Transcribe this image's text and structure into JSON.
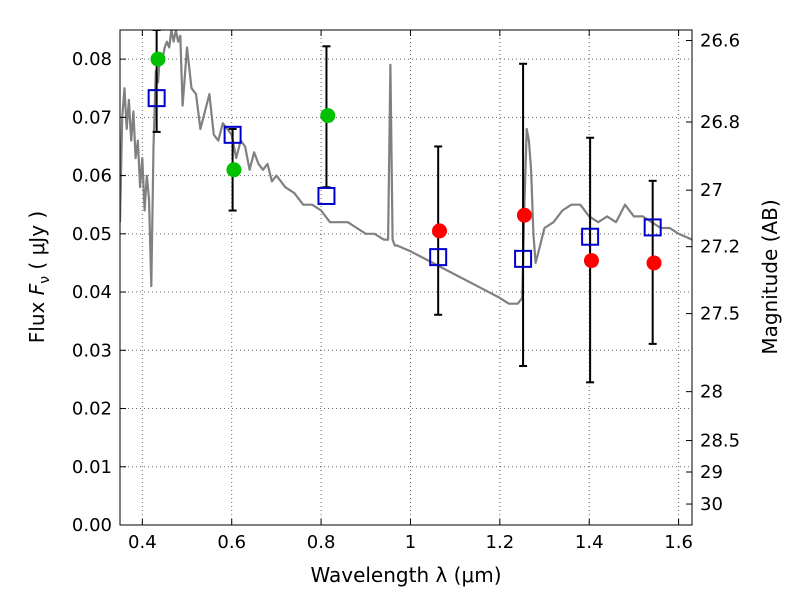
{
  "chart_data": {
    "type": "scatter",
    "xlabel": "Wavelength  λ (μm)",
    "ylabel": "Flux  F_ν  ( μJy )",
    "ylabel_parts": {
      "prefix": "Flux  ",
      "symbol": "F",
      "subscript": "ν",
      "suffix": "  ( μJy )"
    },
    "y2label": "Magnitude (AB)",
    "xlim": [
      0.35,
      1.63
    ],
    "ylim": [
      0.0,
      0.085
    ],
    "grid": true,
    "x_ticks": [
      {
        "value": 0.4,
        "label": "0.4"
      },
      {
        "value": 0.6,
        "label": "0.6"
      },
      {
        "value": 0.8,
        "label": "0.8"
      },
      {
        "value": 1.0,
        "label": "1"
      },
      {
        "value": 1.2,
        "label": "1.2"
      },
      {
        "value": 1.4,
        "label": "1.4"
      },
      {
        "value": 1.6,
        "label": "1.6"
      }
    ],
    "y_ticks": [
      {
        "value": 0.0,
        "label": "0.00"
      },
      {
        "value": 0.01,
        "label": "0.01"
      },
      {
        "value": 0.02,
        "label": "0.02"
      },
      {
        "value": 0.03,
        "label": "0.03"
      },
      {
        "value": 0.04,
        "label": "0.04"
      },
      {
        "value": 0.05,
        "label": "0.05"
      },
      {
        "value": 0.06,
        "label": "0.06"
      },
      {
        "value": 0.07,
        "label": "0.07"
      },
      {
        "value": 0.08,
        "label": "0.08"
      }
    ],
    "y2_ticks": [
      {
        "flux": 0.0832,
        "label": "26.6"
      },
      {
        "flux": 0.0692,
        "label": "26.8"
      },
      {
        "flux": 0.0575,
        "label": "27"
      },
      {
        "flux": 0.0478,
        "label": "27.2"
      },
      {
        "flux": 0.0363,
        "label": "27.5"
      },
      {
        "flux": 0.0229,
        "label": "28"
      },
      {
        "flux": 0.0145,
        "label": "28.5"
      },
      {
        "flux": 0.0091,
        "label": "29"
      },
      {
        "flux": 0.0036,
        "label": "30"
      }
    ],
    "series": [
      {
        "name": "model-sed",
        "kind": "line",
        "color": "#808080",
        "x": [
          0.35,
          0.355,
          0.36,
          0.365,
          0.37,
          0.375,
          0.38,
          0.385,
          0.39,
          0.395,
          0.4,
          0.405,
          0.41,
          0.415,
          0.42,
          0.425,
          0.43,
          0.435,
          0.44,
          0.445,
          0.45,
          0.455,
          0.46,
          0.465,
          0.47,
          0.475,
          0.48,
          0.485,
          0.49,
          0.5,
          0.51,
          0.52,
          0.53,
          0.54,
          0.55,
          0.56,
          0.57,
          0.58,
          0.59,
          0.6,
          0.61,
          0.62,
          0.63,
          0.64,
          0.65,
          0.66,
          0.67,
          0.68,
          0.69,
          0.7,
          0.72,
          0.74,
          0.76,
          0.78,
          0.8,
          0.82,
          0.84,
          0.86,
          0.88,
          0.9,
          0.92,
          0.94,
          0.95,
          0.955,
          0.96,
          0.965,
          0.97,
          1.0,
          1.05,
          1.1,
          1.15,
          1.2,
          1.22,
          1.24,
          1.25,
          1.255,
          1.26,
          1.265,
          1.27,
          1.275,
          1.28,
          1.29,
          1.3,
          1.32,
          1.34,
          1.36,
          1.38,
          1.4,
          1.42,
          1.44,
          1.46,
          1.48,
          1.5,
          1.52,
          1.54,
          1.56,
          1.58,
          1.6,
          1.63
        ],
        "y": [
          0.052,
          0.07,
          0.075,
          0.068,
          0.073,
          0.066,
          0.071,
          0.063,
          0.066,
          0.058,
          0.063,
          0.054,
          0.06,
          0.056,
          0.041,
          0.065,
          0.078,
          0.076,
          0.081,
          0.08,
          0.082,
          0.083,
          0.082,
          0.085,
          0.083,
          0.085,
          0.083,
          0.084,
          0.072,
          0.082,
          0.075,
          0.074,
          0.068,
          0.071,
          0.074,
          0.067,
          0.066,
          0.069,
          0.068,
          0.067,
          0.063,
          0.066,
          0.065,
          0.061,
          0.064,
          0.062,
          0.061,
          0.062,
          0.059,
          0.06,
          0.058,
          0.057,
          0.055,
          0.055,
          0.054,
          0.052,
          0.052,
          0.052,
          0.051,
          0.05,
          0.05,
          0.049,
          0.049,
          0.079,
          0.049,
          0.048,
          0.048,
          0.047,
          0.045,
          0.043,
          0.041,
          0.039,
          0.038,
          0.038,
          0.039,
          0.055,
          0.068,
          0.066,
          0.061,
          0.05,
          0.045,
          0.048,
          0.051,
          0.052,
          0.054,
          0.055,
          0.055,
          0.053,
          0.052,
          0.053,
          0.052,
          0.055,
          0.053,
          0.053,
          0.052,
          0.051,
          0.051,
          0.05,
          0.049
        ]
      },
      {
        "name": "photometry-green",
        "kind": "circle",
        "color": "#00c000",
        "x": [
          0.435,
          0.605,
          0.815
        ],
        "y": [
          0.08,
          0.061,
          0.0703
        ]
      },
      {
        "name": "photometry-red",
        "kind": "circle",
        "color": "#ff0000",
        "x": [
          1.065,
          1.255,
          1.405,
          1.545
        ],
        "y": [
          0.0505,
          0.0532,
          0.0454,
          0.045
        ]
      },
      {
        "name": "model-photometry",
        "kind": "square",
        "color": "#0000cc",
        "x": [
          0.432,
          0.602,
          0.812,
          1.062,
          1.252,
          1.402,
          1.542
        ],
        "y": [
          0.0733,
          0.067,
          0.0565,
          0.046,
          0.0457,
          0.0495,
          0.0511
        ]
      }
    ],
    "errorbars": [
      {
        "x": 0.432,
        "low": 0.0675,
        "high": 0.085
      },
      {
        "x": 0.602,
        "low": 0.054,
        "high": 0.068
      },
      {
        "x": 0.812,
        "low": 0.058,
        "high": 0.0822
      },
      {
        "x": 1.062,
        "low": 0.0361,
        "high": 0.065
      },
      {
        "x": 1.252,
        "low": 0.0273,
        "high": 0.0792
      },
      {
        "x": 1.402,
        "low": 0.0245,
        "high": 0.0665
      },
      {
        "x": 1.542,
        "low": 0.0311,
        "high": 0.0591
      }
    ]
  }
}
